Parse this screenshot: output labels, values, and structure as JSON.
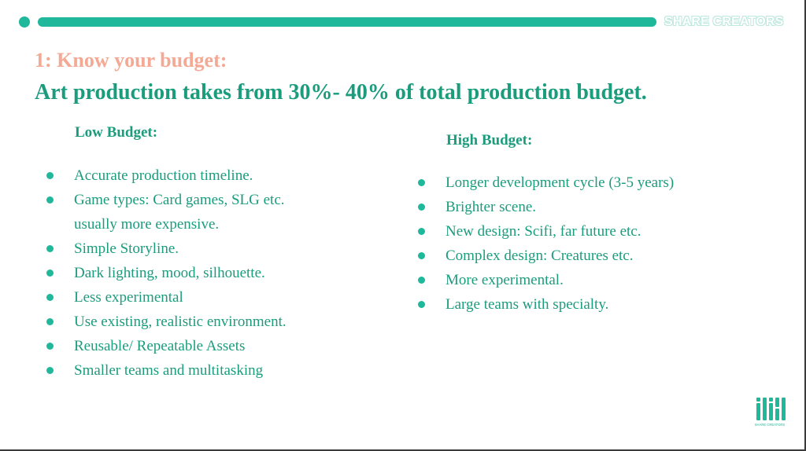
{
  "header": {
    "brand": "SHARE CREATORS"
  },
  "slide": {
    "subtitle": "1: Know your budget:",
    "title": "Art production takes from 30%- 40% of total production budget."
  },
  "low_budget": {
    "heading": "Low Budget:",
    "items": [
      "Accurate production timeline.",
      "Game types: Card games, SLG etc.",
      "usually more expensive.",
      "Simple Storyline.",
      "Dark lighting, mood, silhouette.",
      "Less experimental",
      "Use existing, realistic environment.",
      "Reusable/ Repeatable Assets",
      "Smaller teams and multitasking"
    ]
  },
  "high_budget": {
    "heading": "High Budget:",
    "items": [
      "Longer development cycle (3-5 years)",
      "Brighter scene.",
      "New design: Scifi, far future etc.",
      "Complex design: Creatures etc.",
      "More experimental.",
      "Large teams with specialty."
    ]
  },
  "footer": {
    "logo_text": "SHARE CREATORS",
    "logo_icon": "share-creators-logo-icon"
  },
  "colors": {
    "accent": "#1fb89a",
    "title": "#1b9c7d",
    "subtitle": "#f4a995"
  }
}
